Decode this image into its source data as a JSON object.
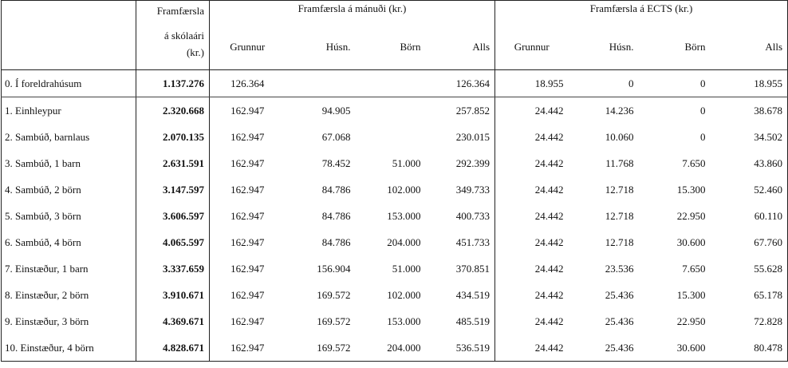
{
  "header": {
    "annual": [
      "Framfærsla",
      "á skólaári",
      "(kr.)"
    ],
    "groups": [
      "Framfærsla á mánuði (kr.)",
      "Framfærsla á ECTS (kr.)"
    ],
    "columns": [
      "Grunnur",
      "Húsn.",
      "Börn",
      "Alls",
      "Grunnur",
      "Húsn.",
      "Börn",
      "Alls"
    ]
  },
  "table": {
    "rows": [
      [
        "0. Í foreldrahúsum",
        "1.137.276",
        "126.364",
        null,
        null,
        "126.364",
        "18.955",
        "0",
        "0",
        "18.955"
      ],
      [
        "1. Einhleypur",
        "2.320.668",
        "162.947",
        "94.905",
        null,
        "257.852",
        "24.442",
        "14.236",
        "0",
        "38.678"
      ],
      [
        "2. Sambúð, barnlaus",
        "2.070.135",
        "162.947",
        "67.068",
        null,
        "230.015",
        "24.442",
        "10.060",
        "0",
        "34.502"
      ],
      [
        "3. Sambúð, 1 barn",
        "2.631.591",
        "162.947",
        "78.452",
        "51.000",
        "292.399",
        "24.442",
        "11.768",
        "7.650",
        "43.860"
      ],
      [
        "4. Sambúð, 2 börn",
        "3.147.597",
        "162.947",
        "84.786",
        "102.000",
        "349.733",
        "24.442",
        "12.718",
        "15.300",
        "52.460"
      ],
      [
        "5. Sambúð, 3 börn",
        "3.606.597",
        "162.947",
        "84.786",
        "153.000",
        "400.733",
        "24.442",
        "12.718",
        "22.950",
        "60.110"
      ],
      [
        "6. Sambúð, 4 börn",
        "4.065.597",
        "162.947",
        "84.786",
        "204.000",
        "451.733",
        "24.442",
        "12.718",
        "30.600",
        "67.760"
      ],
      [
        "7. Einstæður, 1 barn",
        "3.337.659",
        "162.947",
        "156.904",
        "51.000",
        "370.851",
        "24.442",
        "23.536",
        "7.650",
        "55.628"
      ],
      [
        "8. Einstæður, 2 börn",
        "3.910.671",
        "162.947",
        "169.572",
        "102.000",
        "434.519",
        "24.442",
        "25.436",
        "15.300",
        "65.178"
      ],
      [
        "9. Einstæður, 3 börn",
        "4.369.671",
        "162.947",
        "169.572",
        "153.000",
        "485.519",
        "24.442",
        "25.436",
        "22.950",
        "72.828"
      ],
      [
        "10. Einstæður, 4 börn",
        "4.828.671",
        "162.947",
        "169.572",
        "204.000",
        "536.519",
        "24.442",
        "25.436",
        "30.600",
        "80.478"
      ]
    ]
  }
}
